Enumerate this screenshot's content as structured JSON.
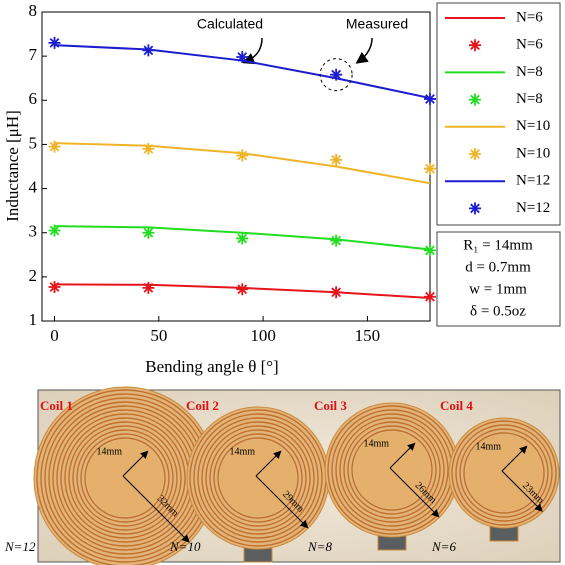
{
  "chart_data": {
    "type": "line",
    "xlabel": "Bending angle θ [°]",
    "ylabel": "Inductance [μH]",
    "xlim": [
      -6,
      180
    ],
    "xticks": [
      0,
      50,
      100,
      150
    ],
    "ylim": [
      1,
      8
    ],
    "yticks": [
      1,
      2,
      3,
      4,
      5,
      6,
      7,
      8
    ],
    "x": [
      0,
      45,
      90,
      135,
      180
    ],
    "series": [
      {
        "name": "N=6",
        "color": "#e8141b",
        "style": "line",
        "values": [
          1.83,
          1.82,
          1.75,
          1.65,
          1.52
        ]
      },
      {
        "name": "N=6",
        "color": "#e8141b",
        "style": "marker",
        "values": [
          1.77,
          1.75,
          1.72,
          1.65,
          1.55
        ]
      },
      {
        "name": "N=8",
        "color": "#22dd22",
        "style": "line",
        "values": [
          3.15,
          3.12,
          3.0,
          2.85,
          2.62
        ]
      },
      {
        "name": "N=8",
        "color": "#22dd22",
        "style": "marker",
        "values": [
          3.05,
          3.0,
          2.87,
          2.82,
          2.6
        ]
      },
      {
        "name": "N=10",
        "color": "#f0b429",
        "style": "line",
        "values": [
          5.03,
          4.97,
          4.8,
          4.5,
          4.12
        ]
      },
      {
        "name": "N=10",
        "color": "#f0b429",
        "style": "marker",
        "values": [
          4.95,
          4.9,
          4.75,
          4.65,
          4.45
        ]
      },
      {
        "name": "N=12",
        "color": "#1c1cd0",
        "style": "line",
        "values": [
          7.25,
          7.15,
          6.9,
          6.5,
          6.05
        ]
      },
      {
        "name": "N=12",
        "color": "#1c1cd0",
        "style": "marker",
        "values": [
          7.3,
          7.13,
          6.98,
          6.58,
          6.03
        ]
      }
    ],
    "annotations": [
      "Calculated",
      "Measured"
    ],
    "params": [
      "R₁ = 14mm",
      "d = 0.7mm",
      "w = 1mm",
      "δ = 0.5oz"
    ]
  },
  "photo": {
    "coils": [
      {
        "title": "Coil 1",
        "inner": "14mm",
        "outer": "32mm",
        "turns": "N=12"
      },
      {
        "title": "Coil 2",
        "inner": "14mm",
        "outer": "29mm",
        "turns": "N=10"
      },
      {
        "title": "Coil 3",
        "inner": "14mm",
        "outer": "26mm",
        "turns": "N=8"
      },
      {
        "title": "Coil 4",
        "inner": "14mm",
        "outer": "23mm",
        "turns": "N=6"
      }
    ]
  }
}
